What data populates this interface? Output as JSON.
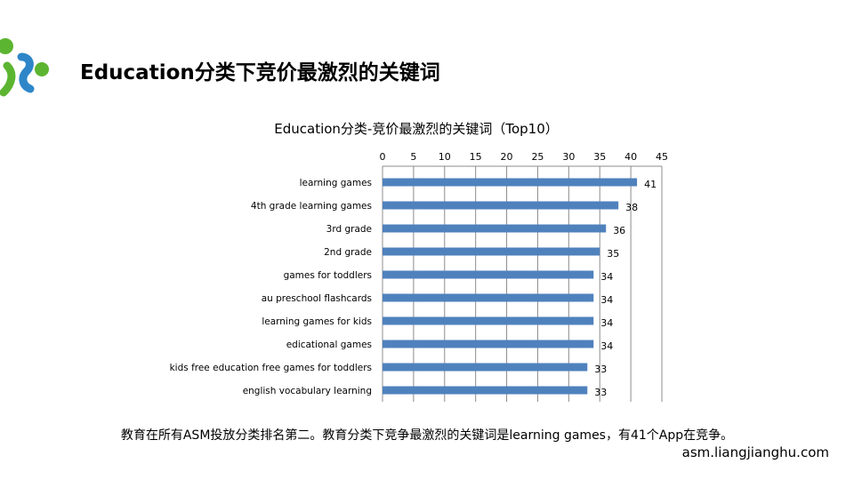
{
  "slide": {
    "title": "Education分类下竞价最激烈的关键词",
    "summary": "教育在所有ASM投放分类排名第二。教育分类下竞争最激烈的关键词是learning games，有41个App在竞争。",
    "website": "asm.liangjianghu.com"
  },
  "colors": {
    "bar": "#4f81bd",
    "logo_green": "#5cb531",
    "logo_blue": "#2e86c8",
    "grid": "#8c8c8c"
  },
  "chart_data": {
    "type": "bar",
    "orientation": "horizontal",
    "title": "Education分类-竞价最激烈的关键词（Top10）",
    "xlabel": "",
    "ylabel": "",
    "xlim": [
      0,
      45
    ],
    "x_ticks": [
      0,
      5,
      10,
      15,
      20,
      25,
      30,
      35,
      40,
      45
    ],
    "x_axis_position": "top",
    "grid": true,
    "categories": [
      "learning games",
      "4th grade learning games",
      "3rd grade",
      "2nd grade",
      "games for toddlers",
      "au preschool flashcards",
      "learning games for kids",
      "edicational games",
      "kids free education  free games for toddlers",
      "english vocabulary learning"
    ],
    "values": [
      41,
      38,
      36,
      35,
      34,
      34,
      34,
      34,
      33,
      33
    ],
    "data_labels": [
      "41",
      "38",
      "36",
      "35",
      "34",
      "34",
      "34",
      "34",
      "33",
      "33"
    ]
  }
}
